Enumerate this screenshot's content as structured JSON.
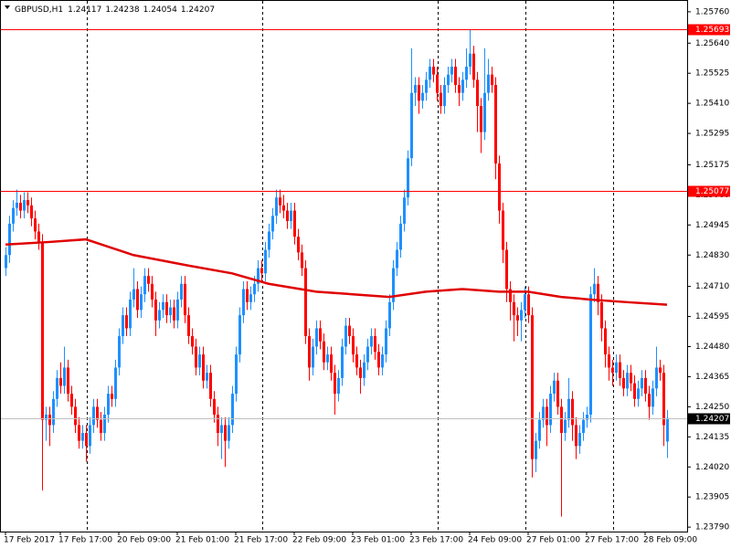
{
  "chart_data": {
    "type": "candlestick",
    "title": "GBPUSD,H1",
    "up_color": "#1e90ff",
    "down_color": "#ff0000",
    "ylim": [
      1.23773,
      1.25805
    ],
    "yticks": [
      {
        "value": 1.2576,
        "label": "1.25760"
      },
      {
        "value": 1.2564,
        "label": "1.25640"
      },
      {
        "value": 1.25525,
        "label": "1.25525"
      },
      {
        "value": 1.2541,
        "label": "1.25410"
      },
      {
        "value": 1.25295,
        "label": "1.25295"
      },
      {
        "value": 1.25175,
        "label": "1.25175"
      },
      {
        "value": 1.2506,
        "label": "1.25060"
      },
      {
        "value": 1.24945,
        "label": "1.24945"
      },
      {
        "value": 1.2483,
        "label": "1.24830"
      },
      {
        "value": 1.2471,
        "label": "1.24710"
      },
      {
        "value": 1.24595,
        "label": "1.24595"
      },
      {
        "value": 1.2448,
        "label": "1.24480"
      },
      {
        "value": 1.24365,
        "label": "1.24365"
      },
      {
        "value": 1.2425,
        "label": "1.24250"
      },
      {
        "value": 1.24135,
        "label": "1.24135"
      },
      {
        "value": 1.2402,
        "label": "1.24020"
      },
      {
        "value": 1.23905,
        "label": "1.23905"
      },
      {
        "value": 1.2379,
        "label": "1.23790"
      }
    ],
    "hlines": [
      {
        "value": 1.25693,
        "color": "#ff0000"
      },
      {
        "value": 1.25077,
        "color": "#ff0000"
      },
      {
        "value": 1.24207,
        "color": "#c0c0c0"
      }
    ],
    "categories": [
      "17 Feb 2017",
      null,
      null,
      null,
      null,
      null,
      null,
      null,
      null,
      null,
      null,
      null,
      null,
      null,
      null,
      "17 Feb 17:00",
      null,
      null,
      null,
      null,
      null,
      null,
      null,
      null,
      null,
      null,
      null,
      null,
      null,
      null,
      null,
      "20 Feb 09:00",
      null,
      null,
      null,
      null,
      null,
      null,
      null,
      null,
      null,
      null,
      null,
      null,
      null,
      null,
      null,
      "21 Feb 01:00",
      null,
      null,
      null,
      null,
      null,
      null,
      null,
      null,
      null,
      null,
      null,
      null,
      null,
      null,
      null,
      "21 Feb 17:00",
      null,
      null,
      null,
      null,
      null,
      null,
      null,
      null,
      null,
      null,
      null,
      null,
      null,
      null,
      null,
      "22 Feb 09:00",
      null,
      null,
      null,
      null,
      null,
      null,
      null,
      null,
      null,
      null,
      null,
      null,
      null,
      null,
      null,
      "23 Feb 01:00",
      null,
      null,
      null,
      null,
      null,
      null,
      null,
      null,
      null,
      null,
      null,
      null,
      null,
      null,
      null,
      "23 Feb 17:00",
      null,
      null,
      null,
      null,
      null,
      null,
      null,
      null,
      null,
      null,
      null,
      null,
      null,
      null,
      null,
      "24 Feb 09:00",
      null,
      null,
      null,
      null,
      null,
      null,
      null,
      null,
      null,
      null,
      null,
      null,
      null,
      null,
      null,
      "27 Feb 01:00",
      null,
      null,
      null,
      null,
      null,
      null,
      null,
      null,
      null,
      null,
      null,
      null,
      null,
      null,
      null,
      "27 Feb 17:00",
      null,
      null,
      null,
      null,
      null,
      null,
      null,
      null,
      null,
      null,
      null,
      null,
      null,
      null,
      null,
      "28 Feb 09:00",
      null,
      null,
      null,
      null,
      null,
      null
    ],
    "candles": [
      [
        1.2478,
        1.2486,
        1.2475,
        1.2483
      ],
      [
        1.2483,
        1.2498,
        1.248,
        1.2495
      ],
      [
        1.2495,
        1.2504,
        1.2492,
        1.2501
      ],
      [
        1.2501,
        1.2508,
        1.2498,
        1.2503
      ],
      [
        1.2503,
        1.2506,
        1.2497,
        1.25
      ],
      [
        1.25,
        1.2507,
        1.2497,
        1.2504
      ],
      [
        1.2504,
        1.2507,
        1.2499,
        1.2502
      ],
      [
        1.2502,
        1.2505,
        1.2494,
        1.2497
      ],
      [
        1.2497,
        1.25,
        1.2489,
        1.2492
      ],
      [
        1.2492,
        1.2495,
        1.2485,
        1.2488
      ],
      [
        1.2488,
        1.2491,
        1.2393,
        1.242
      ],
      [
        1.242,
        1.2425,
        1.2412,
        1.2422
      ],
      [
        1.2422,
        1.2425,
        1.241,
        1.2418
      ],
      [
        1.2418,
        1.2431,
        1.2415,
        1.2428
      ],
      [
        1.2428,
        1.2439,
        1.2425,
        1.2436
      ],
      [
        1.2436,
        1.2442,
        1.243,
        1.2433
      ],
      [
        1.2433,
        1.2448,
        1.243,
        1.244
      ],
      [
        1.244,
        1.2443,
        1.2427,
        1.243
      ],
      [
        1.243,
        1.2433,
        1.2422,
        1.2425
      ],
      [
        1.2425,
        1.2428,
        1.2415,
        1.2418
      ],
      [
        1.2418,
        1.2421,
        1.2409,
        1.2412
      ],
      [
        1.2412,
        1.2418,
        1.2409,
        1.2415
      ],
      [
        1.2415,
        1.2418,
        1.2404,
        1.241
      ],
      [
        1.241,
        1.2421,
        1.2407,
        1.2418
      ],
      [
        1.2418,
        1.2428,
        1.2415,
        1.2425
      ],
      [
        1.2425,
        1.2428,
        1.2417,
        1.242
      ],
      [
        1.242,
        1.2423,
        1.2412,
        1.2415
      ],
      [
        1.2415,
        1.2425,
        1.2412,
        1.2422
      ],
      [
        1.2422,
        1.2433,
        1.2419,
        1.243
      ],
      [
        1.243,
        1.2433,
        1.2425,
        1.2428
      ],
      [
        1.2428,
        1.2443,
        1.2425,
        1.244
      ],
      [
        1.244,
        1.2455,
        1.2437,
        1.2452
      ],
      [
        1.2452,
        1.2463,
        1.2449,
        1.246
      ],
      [
        1.246,
        1.2463,
        1.2452,
        1.2455
      ],
      [
        1.2455,
        1.2469,
        1.2452,
        1.2466
      ],
      [
        1.2466,
        1.2478,
        1.2463,
        1.247
      ],
      [
        1.247,
        1.2473,
        1.2459,
        1.2462
      ],
      [
        1.2462,
        1.2471,
        1.2459,
        1.2468
      ],
      [
        1.2468,
        1.2478,
        1.2465,
        1.2475
      ],
      [
        1.2475,
        1.2478,
        1.2469,
        1.2472
      ],
      [
        1.2472,
        1.2475,
        1.2463,
        1.2466
      ],
      [
        1.2466,
        1.2469,
        1.2452,
        1.2458
      ],
      [
        1.2458,
        1.2465,
        1.2455,
        1.2462
      ],
      [
        1.2462,
        1.2468,
        1.2459,
        1.2465
      ],
      [
        1.2465,
        1.2468,
        1.2457,
        1.246
      ],
      [
        1.246,
        1.2466,
        1.2457,
        1.2463
      ],
      [
        1.2463,
        1.2466,
        1.2455,
        1.2458
      ],
      [
        1.2458,
        1.2469,
        1.2455,
        1.2466
      ],
      [
        1.2466,
        1.2475,
        1.2463,
        1.2472
      ],
      [
        1.2472,
        1.2475,
        1.2457,
        1.246
      ],
      [
        1.246,
        1.2463,
        1.2449,
        1.2452
      ],
      [
        1.2452,
        1.2455,
        1.2445,
        1.2448
      ],
      [
        1.2448,
        1.2451,
        1.2437,
        1.244
      ],
      [
        1.244,
        1.2448,
        1.2437,
        1.2445
      ],
      [
        1.2445,
        1.2448,
        1.2432,
        1.2435
      ],
      [
        1.2435,
        1.2441,
        1.2432,
        1.2438
      ],
      [
        1.2438,
        1.2441,
        1.2425,
        1.2428
      ],
      [
        1.2428,
        1.2431,
        1.2419,
        1.2422
      ],
      [
        1.2422,
        1.2425,
        1.241,
        1.2415
      ],
      [
        1.2415,
        1.2421,
        1.2405,
        1.2418
      ],
      [
        1.2418,
        1.2421,
        1.2402,
        1.2412
      ],
      [
        1.2412,
        1.2421,
        1.2409,
        1.2418
      ],
      [
        1.2418,
        1.2433,
        1.2415,
        1.243
      ],
      [
        1.243,
        1.2448,
        1.2427,
        1.2445
      ],
      [
        1.2445,
        1.2463,
        1.2442,
        1.246
      ],
      [
        1.246,
        1.2473,
        1.2457,
        1.247
      ],
      [
        1.247,
        1.2473,
        1.2462,
        1.2465
      ],
      [
        1.2465,
        1.2471,
        1.2462,
        1.2468
      ],
      [
        1.2468,
        1.2475,
        1.2465,
        1.2472
      ],
      [
        1.2472,
        1.2481,
        1.2469,
        1.2478
      ],
      [
        1.2478,
        1.2481,
        1.2473,
        1.2476
      ],
      [
        1.2476,
        1.2488,
        1.2473,
        1.2485
      ],
      [
        1.2485,
        1.2495,
        1.2482,
        1.2492
      ],
      [
        1.2492,
        1.2501,
        1.2489,
        1.2498
      ],
      [
        1.2498,
        1.2508,
        1.2495,
        1.2505
      ],
      [
        1.2505,
        1.2508,
        1.2499,
        1.2502
      ],
      [
        1.2502,
        1.2506,
        1.2497,
        1.25
      ],
      [
        1.25,
        1.2503,
        1.2493,
        1.2496
      ],
      [
        1.2496,
        1.2503,
        1.2493,
        1.25
      ],
      [
        1.25,
        1.2503,
        1.2487,
        1.249
      ],
      [
        1.249,
        1.2493,
        1.2481,
        1.2484
      ],
      [
        1.2484,
        1.2487,
        1.2475,
        1.2478
      ],
      [
        1.2478,
        1.2481,
        1.2449,
        1.2452
      ],
      [
        1.2452,
        1.2455,
        1.2435,
        1.244
      ],
      [
        1.244,
        1.2451,
        1.2437,
        1.2448
      ],
      [
        1.2448,
        1.2458,
        1.2445,
        1.2455
      ],
      [
        1.2455,
        1.2458,
        1.2447,
        1.245
      ],
      [
        1.245,
        1.2453,
        1.2439,
        1.2442
      ],
      [
        1.2442,
        1.2448,
        1.2439,
        1.2445
      ],
      [
        1.2445,
        1.2448,
        1.2435,
        1.2438
      ],
      [
        1.2438,
        1.2441,
        1.2422,
        1.243
      ],
      [
        1.243,
        1.2439,
        1.2427,
        1.2436
      ],
      [
        1.2436,
        1.2451,
        1.2433,
        1.2448
      ],
      [
        1.2448,
        1.2459,
        1.2445,
        1.2456
      ],
      [
        1.2456,
        1.2459,
        1.2449,
        1.2452
      ],
      [
        1.2452,
        1.2455,
        1.2442,
        1.2445
      ],
      [
        1.2445,
        1.2448,
        1.2437,
        1.244
      ],
      [
        1.244,
        1.2443,
        1.243,
        1.2436
      ],
      [
        1.2436,
        1.2445,
        1.2433,
        1.2442
      ],
      [
        1.2442,
        1.2451,
        1.2439,
        1.2448
      ],
      [
        1.2448,
        1.2455,
        1.2445,
        1.2452
      ],
      [
        1.2452,
        1.2455,
        1.2443,
        1.2446
      ],
      [
        1.2446,
        1.2449,
        1.2437,
        1.244
      ],
      [
        1.244,
        1.2448,
        1.2437,
        1.2445
      ],
      [
        1.2445,
        1.2458,
        1.2442,
        1.2455
      ],
      [
        1.2455,
        1.2468,
        1.2452,
        1.2465
      ],
      [
        1.2465,
        1.2481,
        1.2462,
        1.2478
      ],
      [
        1.2478,
        1.2488,
        1.2475,
        1.2485
      ],
      [
        1.2485,
        1.2498,
        1.2482,
        1.2495
      ],
      [
        1.2495,
        1.2508,
        1.2492,
        1.2505
      ],
      [
        1.2505,
        1.2523,
        1.2502,
        1.252
      ],
      [
        1.252,
        1.2562,
        1.2517,
        1.2545
      ],
      [
        1.2545,
        1.2551,
        1.254,
        1.2548
      ],
      [
        1.2548,
        1.2551,
        1.2537,
        1.2542
      ],
      [
        1.2542,
        1.2548,
        1.2539,
        1.2545
      ],
      [
        1.2545,
        1.2553,
        1.2542,
        1.255
      ],
      [
        1.255,
        1.2558,
        1.2547,
        1.2555
      ],
      [
        1.2555,
        1.2558,
        1.2549,
        1.2552
      ],
      [
        1.2552,
        1.2555,
        1.2542,
        1.2545
      ],
      [
        1.2545,
        1.2548,
        1.2537,
        1.254
      ],
      [
        1.254,
        1.2551,
        1.2537,
        1.2548
      ],
      [
        1.2548,
        1.2555,
        1.2545,
        1.2552
      ],
      [
        1.2552,
        1.2558,
        1.2549,
        1.2555
      ],
      [
        1.2555,
        1.2558,
        1.2545,
        1.2548
      ],
      [
        1.2548,
        1.2551,
        1.254,
        1.2545
      ],
      [
        1.2545,
        1.2553,
        1.2542,
        1.255
      ],
      [
        1.255,
        1.2562,
        1.2547,
        1.2555
      ],
      [
        1.2555,
        1.2569,
        1.2552,
        1.256
      ],
      [
        1.256,
        1.2563,
        1.2547,
        1.255
      ],
      [
        1.255,
        1.2553,
        1.253,
        1.254
      ],
      [
        1.254,
        1.2543,
        1.2522,
        1.253
      ],
      [
        1.253,
        1.2562,
        1.2527,
        1.2545
      ],
      [
        1.2545,
        1.2558,
        1.2542,
        1.2552
      ],
      [
        1.2552,
        1.2555,
        1.2545,
        1.2548
      ],
      [
        1.2548,
        1.2551,
        1.2512,
        1.2518
      ],
      [
        1.2518,
        1.2521,
        1.2495,
        1.25
      ],
      [
        1.25,
        1.2503,
        1.248,
        1.2485
      ],
      [
        1.2485,
        1.2488,
        1.2465,
        1.247
      ],
      [
        1.247,
        1.2473,
        1.2458,
        1.2465
      ],
      [
        1.2465,
        1.2468,
        1.245,
        1.246
      ],
      [
        1.246,
        1.2463,
        1.2452,
        1.2458
      ],
      [
        1.2458,
        1.2465,
        1.245,
        1.2462
      ],
      [
        1.2462,
        1.2471,
        1.2459,
        1.2468
      ],
      [
        1.2468,
        1.2471,
        1.2457,
        1.246
      ],
      [
        1.246,
        1.2463,
        1.2398,
        1.2405
      ],
      [
        1.2405,
        1.2415,
        1.24,
        1.2412
      ],
      [
        1.2412,
        1.2423,
        1.2409,
        1.242
      ],
      [
        1.242,
        1.2428,
        1.2417,
        1.2425
      ],
      [
        1.2425,
        1.2428,
        1.241,
        1.2418
      ],
      [
        1.2418,
        1.2433,
        1.2415,
        1.243
      ],
      [
        1.243,
        1.2438,
        1.2427,
        1.2435
      ],
      [
        1.2435,
        1.2438,
        1.2422,
        1.2425
      ],
      [
        1.2425,
        1.2428,
        1.2383,
        1.2415
      ],
      [
        1.2415,
        1.2423,
        1.2412,
        1.242
      ],
      [
        1.242,
        1.2436,
        1.2417,
        1.2428
      ],
      [
        1.2428,
        1.2431,
        1.2412,
        1.2418
      ],
      [
        1.2418,
        1.2421,
        1.2405,
        1.241
      ],
      [
        1.241,
        1.2418,
        1.2407,
        1.2415
      ],
      [
        1.2415,
        1.2423,
        1.2412,
        1.242
      ],
      [
        1.242,
        1.2425,
        1.2417,
        1.2422
      ],
      [
        1.2422,
        1.2471,
        1.2419,
        1.2468
      ],
      [
        1.2468,
        1.2478,
        1.2465,
        1.2472
      ],
      [
        1.2472,
        1.2475,
        1.246,
        1.2465
      ],
      [
        1.2465,
        1.2468,
        1.245,
        1.2455
      ],
      [
        1.2455,
        1.2458,
        1.244,
        1.2445
      ],
      [
        1.2445,
        1.2448,
        1.2435,
        1.244
      ],
      [
        1.244,
        1.2443,
        1.2433,
        1.2438
      ],
      [
        1.2438,
        1.2445,
        1.2435,
        1.2442
      ],
      [
        1.2442,
        1.2445,
        1.2433,
        1.2436
      ],
      [
        1.2436,
        1.2439,
        1.2429,
        1.2432
      ],
      [
        1.2432,
        1.2441,
        1.2429,
        1.2438
      ],
      [
        1.2438,
        1.2441,
        1.2431,
        1.2434
      ],
      [
        1.2434,
        1.2437,
        1.2425,
        1.2428
      ],
      [
        1.2428,
        1.2435,
        1.2425,
        1.2432
      ],
      [
        1.2432,
        1.2439,
        1.2429,
        1.2436
      ],
      [
        1.2436,
        1.2439,
        1.2427,
        1.243
      ],
      [
        1.243,
        1.2433,
        1.242,
        1.2425
      ],
      [
        1.2425,
        1.2435,
        1.2422,
        1.2432
      ],
      [
        1.2432,
        1.2448,
        1.2429,
        1.244
      ],
      [
        1.244,
        1.2443,
        1.2435,
        1.2438
      ],
      [
        1.2438,
        1.2441,
        1.241,
        1.2418
      ],
      [
        1.24117,
        1.24238,
        1.24054,
        1.24207
      ]
    ],
    "ma": {
      "color": "#e00000",
      "x": [
        0,
        12,
        22,
        35,
        50,
        62,
        72,
        85,
        95,
        105,
        115,
        125,
        135,
        143,
        152,
        160,
        170,
        181
      ],
      "values": [
        1.2487,
        1.2488,
        1.2489,
        1.2483,
        1.2479,
        1.2476,
        1.2472,
        1.2469,
        1.2468,
        1.2467,
        1.2469,
        1.247,
        1.2469,
        1.2469,
        1.2467,
        1.2466,
        1.2465,
        1.2464
      ]
    }
  }
}
